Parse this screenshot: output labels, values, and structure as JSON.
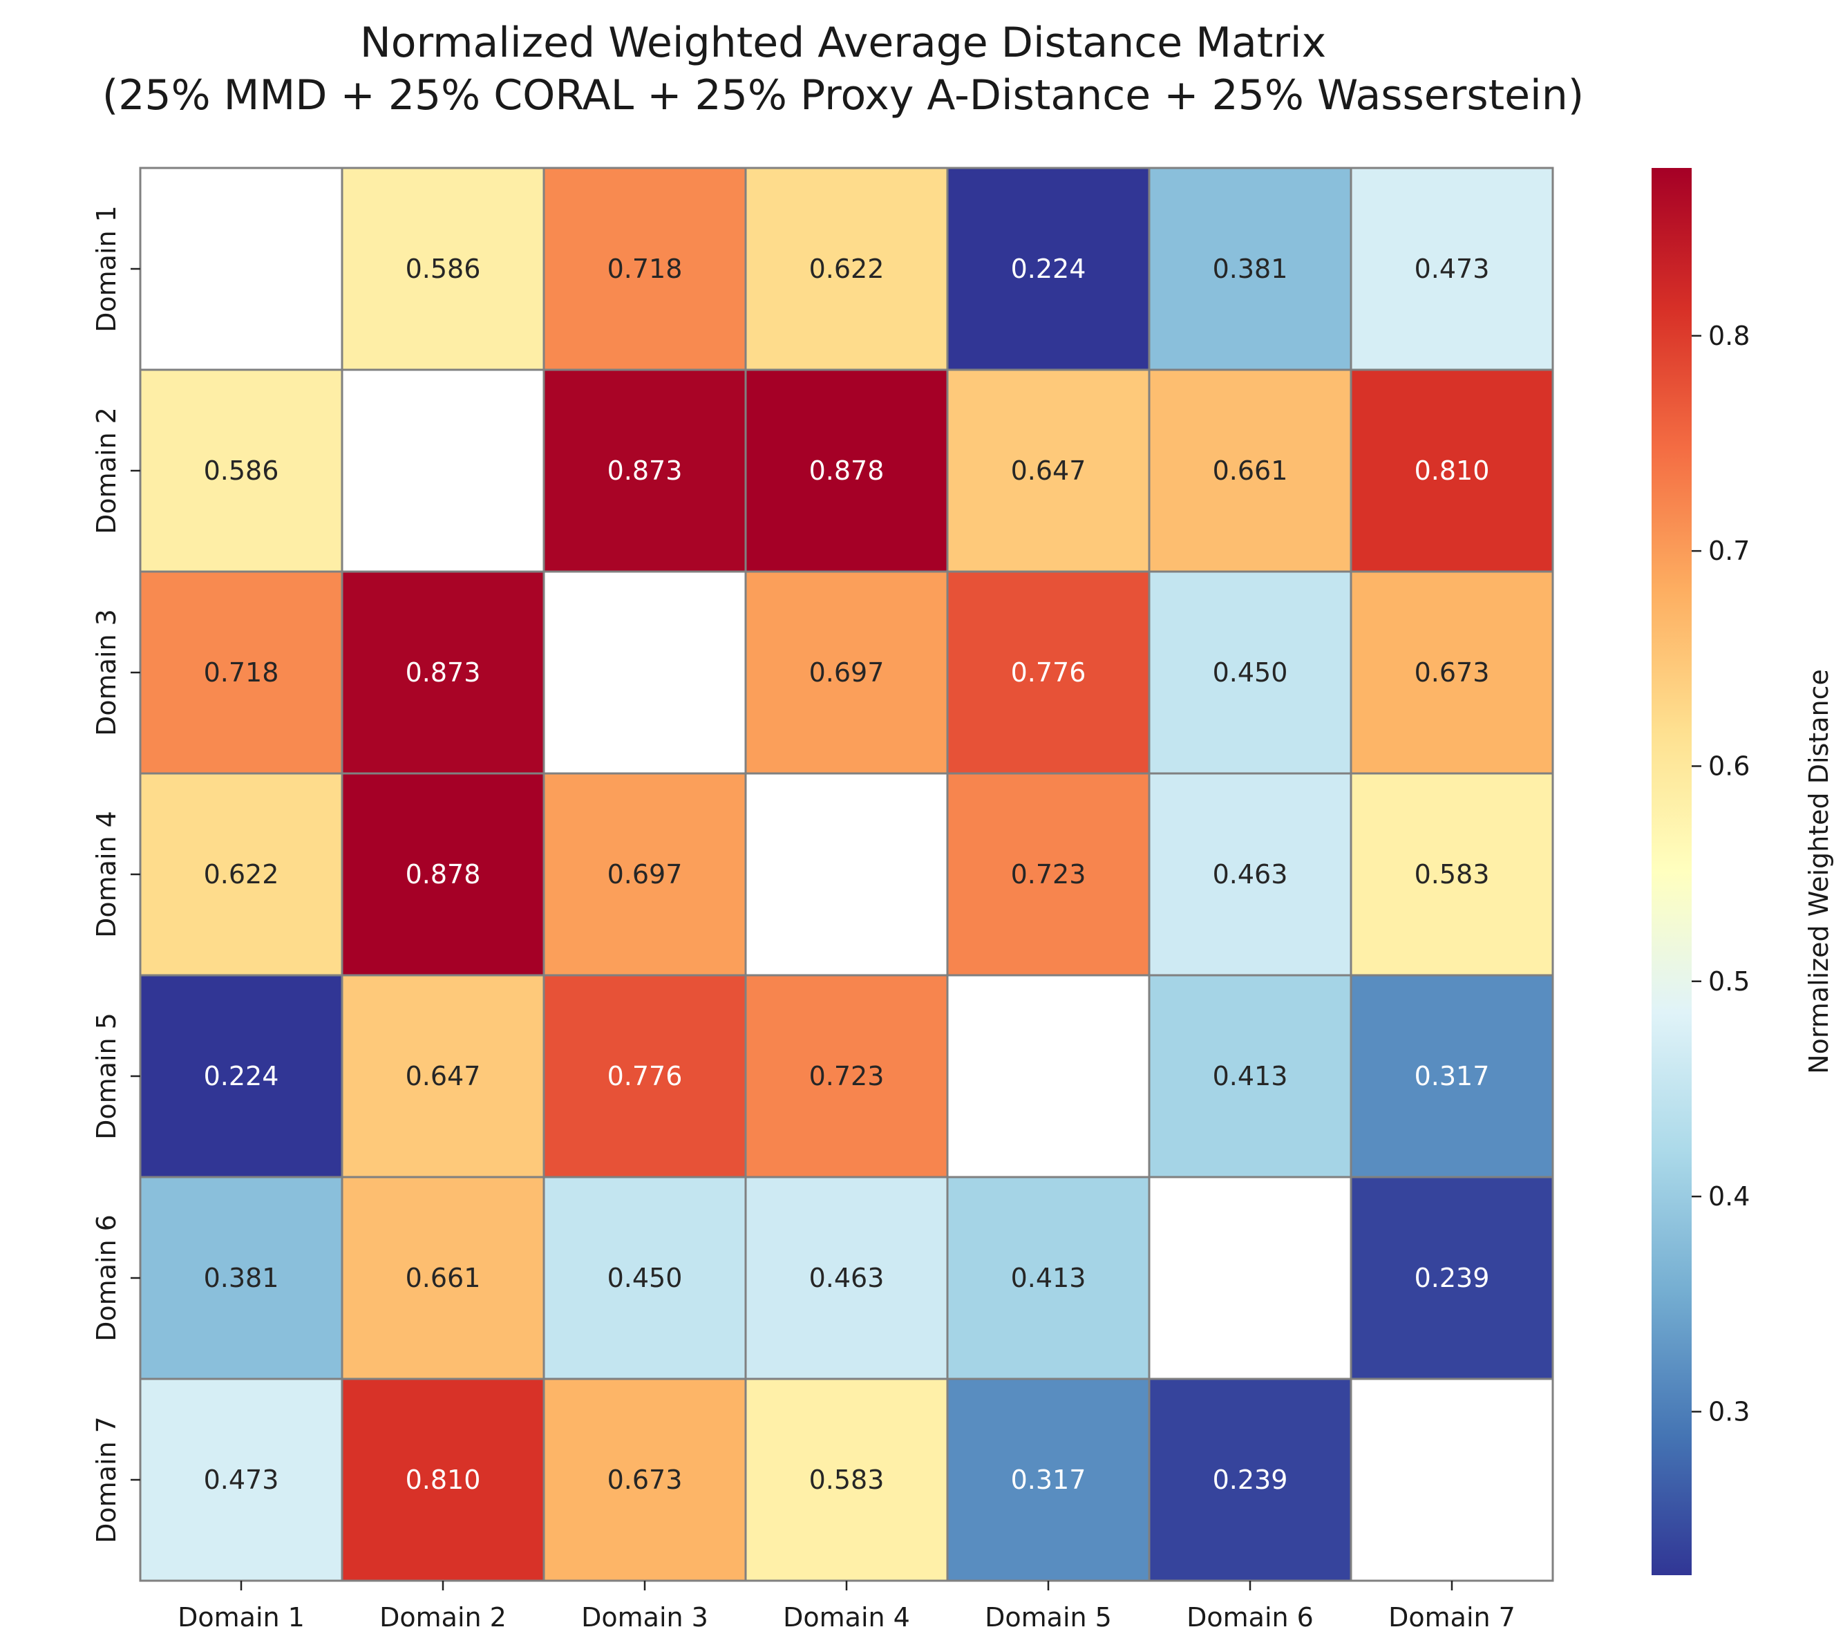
{
  "chart_data": {
    "type": "heatmap",
    "title": "Normalized Weighted Average Distance Matrix",
    "subtitle": "(25% MMD + 25% CORAL + 25% Proxy A-Distance + 25% Wasserstein)",
    "row_labels": [
      "Domain 1",
      "Domain 2",
      "Domain 3",
      "Domain 4",
      "Domain 5",
      "Domain 6",
      "Domain 7"
    ],
    "col_labels": [
      "Domain 1",
      "Domain 2",
      "Domain 3",
      "Domain 4",
      "Domain 5",
      "Domain 6",
      "Domain 7"
    ],
    "values": [
      [
        null,
        0.586,
        0.718,
        0.622,
        0.224,
        0.381,
        0.473
      ],
      [
        0.586,
        null,
        0.873,
        0.878,
        0.647,
        0.661,
        0.81
      ],
      [
        0.718,
        0.873,
        null,
        0.697,
        0.776,
        0.45,
        0.673
      ],
      [
        0.622,
        0.878,
        0.697,
        null,
        0.723,
        0.463,
        0.583
      ],
      [
        0.224,
        0.647,
        0.776,
        0.723,
        null,
        0.413,
        0.317
      ],
      [
        0.381,
        0.661,
        0.45,
        0.463,
        0.413,
        null,
        0.239
      ],
      [
        0.473,
        0.81,
        0.673,
        0.583,
        0.317,
        0.239,
        null
      ]
    ],
    "value_format": "0.000",
    "diagonal_masked": true,
    "colormap": "RdYlBu_r",
    "colormap_stops": [
      "#313695",
      "#4575b4",
      "#74add1",
      "#abd9e9",
      "#e0f3f8",
      "#ffffbf",
      "#fee090",
      "#fdae61",
      "#f46d43",
      "#d73027",
      "#a50026"
    ],
    "cell_border_color": "#808080",
    "vmin": 0.224,
    "vmax": 0.878,
    "colorbar": {
      "label": "Normalized Weighted Distance",
      "ticks": [
        0.3,
        0.4,
        0.5,
        0.6,
        0.7,
        0.8
      ],
      "tick_labels": [
        "0.3",
        "0.4",
        "0.5",
        "0.6",
        "0.7",
        "0.8"
      ],
      "placement": "right"
    }
  }
}
